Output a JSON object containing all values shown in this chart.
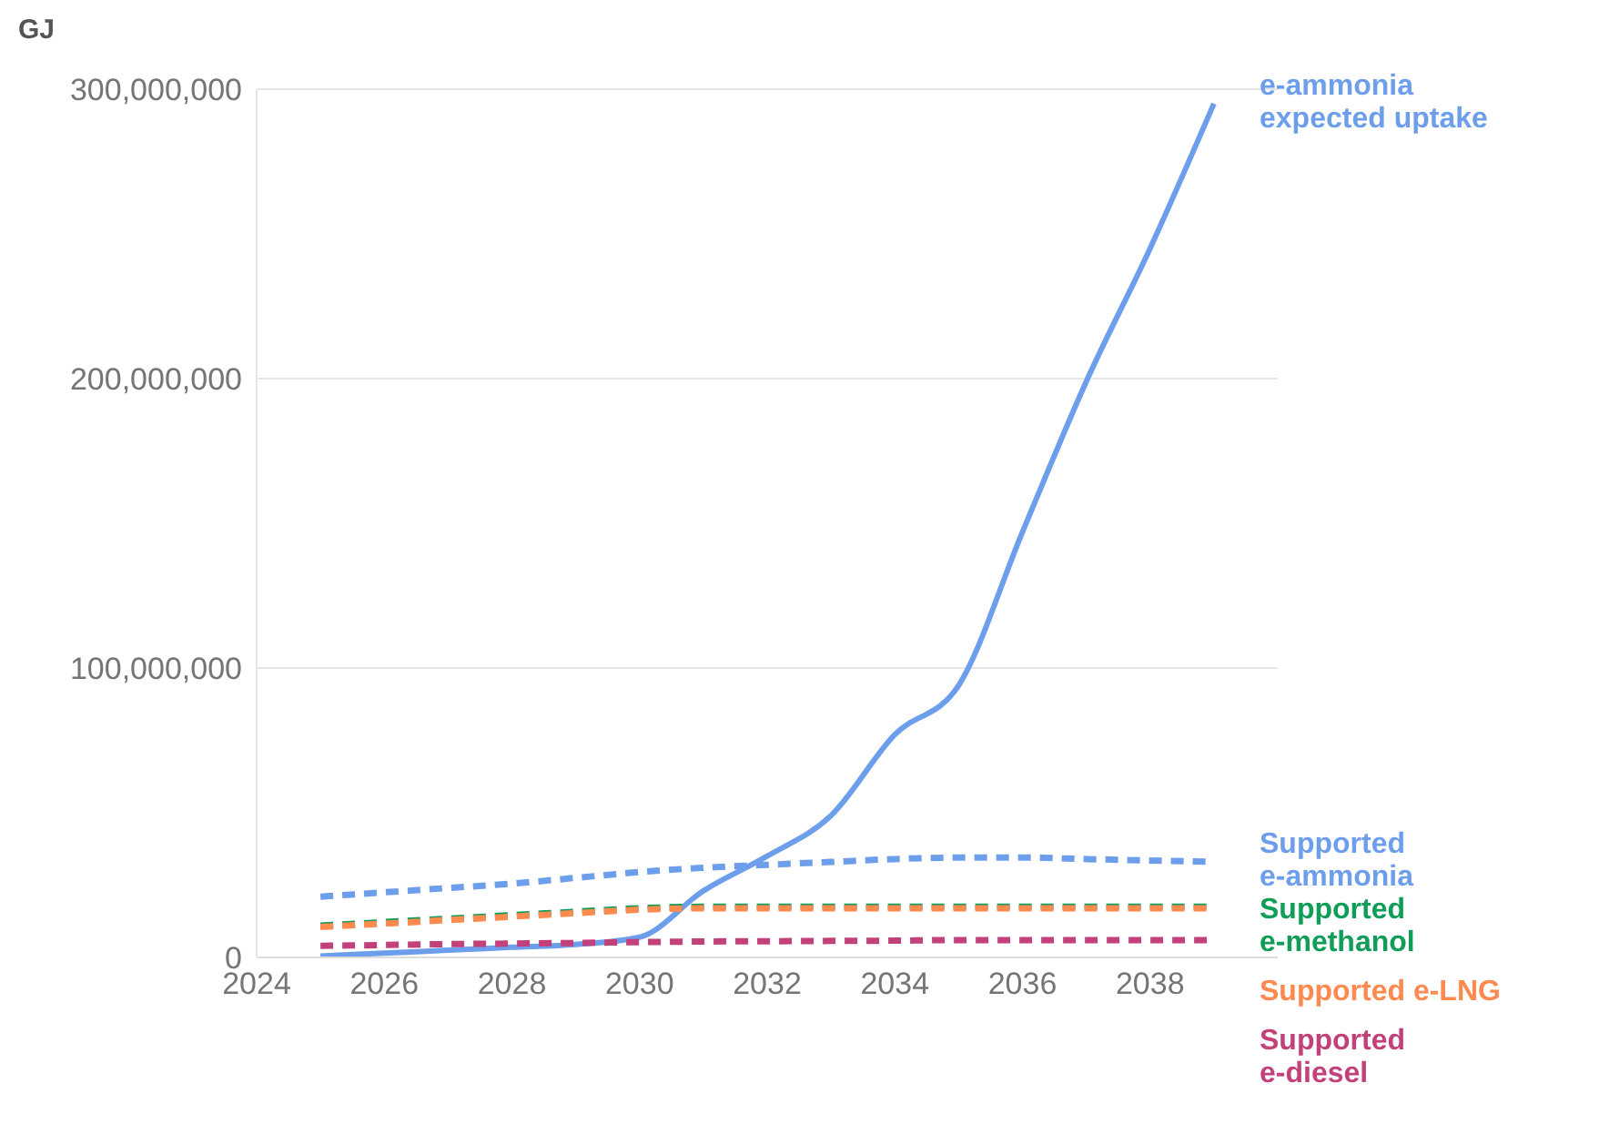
{
  "chart_data": {
    "type": "line",
    "ylabel": "GJ",
    "x": [
      2025,
      2026,
      2027,
      2028,
      2029,
      2030,
      2031,
      2032,
      2033,
      2034,
      2035,
      2036,
      2037,
      2038,
      2039
    ],
    "series": [
      {
        "name": "e-ammonia expected uptake",
        "color": "#6d9eeb",
        "line_style": "solid",
        "values": [
          500000,
          1500000,
          2500000,
          3500000,
          4500000,
          7000000,
          23000000,
          35000000,
          49000000,
          77000000,
          94000000,
          147000000,
          199000000,
          245000000,
          295000000
        ]
      },
      {
        "name": "Supported e-ammonia",
        "color": "#6d9eeb",
        "line_style": "dashed",
        "values": [
          21000000,
          22500000,
          24000000,
          25500000,
          27500000,
          29500000,
          31000000,
          32000000,
          33000000,
          34000000,
          34500000,
          34500000,
          34000000,
          33500000,
          33000000
        ]
      },
      {
        "name": "Supported e-methanol",
        "color": "#0f9d58",
        "line_style": "dashed",
        "values": [
          11000000,
          12200000,
          13400000,
          14600000,
          15800000,
          17000000,
          17500000,
          17500000,
          17500000,
          17500000,
          17500000,
          17500000,
          17500000,
          17500000,
          17500000
        ]
      },
      {
        "name": "Supported e-LNG",
        "color": "#ff8a50",
        "line_style": "dashed",
        "values": [
          10500000,
          11700000,
          12900000,
          14100000,
          15300000,
          16500000,
          17000000,
          17000000,
          17000000,
          17000000,
          17000000,
          17000000,
          17000000,
          17000000,
          17000000
        ]
      },
      {
        "name": "Supported e-diesel",
        "color": "#c2417a",
        "line_style": "dashed",
        "values": [
          4000000,
          4300000,
          4600000,
          4800000,
          5000000,
          5300000,
          5500000,
          5600000,
          5700000,
          5800000,
          6000000,
          6000000,
          6000000,
          6000000,
          6000000
        ]
      }
    ],
    "xlim": [
      2024,
      2040
    ],
    "xticks": [
      2024,
      2026,
      2028,
      2030,
      2032,
      2034,
      2036,
      2038
    ],
    "ylim": [
      0,
      300000000
    ],
    "yticks": [
      0,
      {
        "value": 100000000,
        "label": "100,000,000"
      },
      {
        "value": 200000000,
        "label": "200,000,000"
      },
      {
        "value": 300000000,
        "label": "300,000,000"
      }
    ],
    "grid": "y"
  }
}
